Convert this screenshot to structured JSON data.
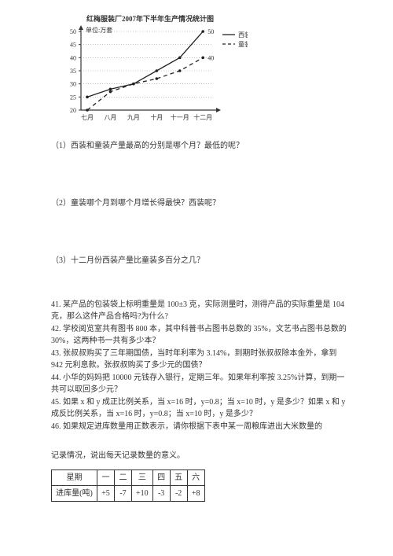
{
  "chart": {
    "title": "红梅服装厂2007年下半年生产情况统计图",
    "unit_label": "单位:万套",
    "legend": {
      "solid": "西装",
      "dashed": "童装"
    },
    "y_ticks": [
      20,
      25,
      30,
      35,
      40,
      45,
      50
    ],
    "x_labels": [
      "七月",
      "八月",
      "九月",
      "十月",
      "十一月",
      "十二月"
    ],
    "series_solid": [
      25,
      28,
      30,
      35,
      40,
      50
    ],
    "series_dashed": [
      20,
      27,
      30,
      32,
      35,
      40
    ],
    "val_labels_solid": [
      "",
      "",
      "",
      "",
      "",
      "50"
    ],
    "val_labels_dashed": [
      "",
      "",
      "",
      "",
      "",
      "40"
    ],
    "axis_color": "#333333",
    "grid_color": "#999999",
    "line_color": "#222222",
    "bg": "#ffffff",
    "font_size_axis": 8
  },
  "questions": {
    "q1": "（1）西装和童装产量最高的分别是哪个月？最低的呢？",
    "q2": "（2）童装哪个月到哪个月增长得最快？西装呢？",
    "q3": "（3）十二月份西装产量比童装多百分之几？"
  },
  "problems": {
    "p41": "41. 某产品的包装袋上标明重量是 100±3 克，实际测量时，测得产品的实际重量是 104 克，那么这件产品合格吗?为什么?",
    "p42": "42. 学校阅览室共有图书 800 本，其中科普书占图书总数的 35%，文艺书占图书总数的 30%，这两种书一共有多少本？",
    "p43": "43. 张叔叔购买了三年期国债，当时年利率为 3.14%，到期时张叔叔除本金外，拿到 942 元利息款。张叔叔购买了多少元的国债？",
    "p44": "44. 小华的妈妈把 10000 元钱存入银行，定期三年。如果年利率按 3.25%计算，到期一共可以取回多少元？",
    "p45": "45. 如果 x 和 y 成正比例关系，当 x=16 时，y=0.8；当 x=10 时，y 是多少？如果 x 和 y 成反比例关系，当 x=16 时，y=0.8；当 x=10 时，y 是多少？",
    "p46": "46. 如果规定进库数量用正数表示，请你根据下表中某一周粮库进出大米数量的",
    "p46b": "记录情况，说出每天记录数量的意义。"
  },
  "table": {
    "header": "星期",
    "days": [
      "一",
      "二",
      "三",
      "四",
      "五",
      "六"
    ],
    "row_label": "进库量(吨)",
    "values": [
      "+5",
      "-7",
      "+10",
      "-3",
      "-2",
      "+8"
    ]
  }
}
